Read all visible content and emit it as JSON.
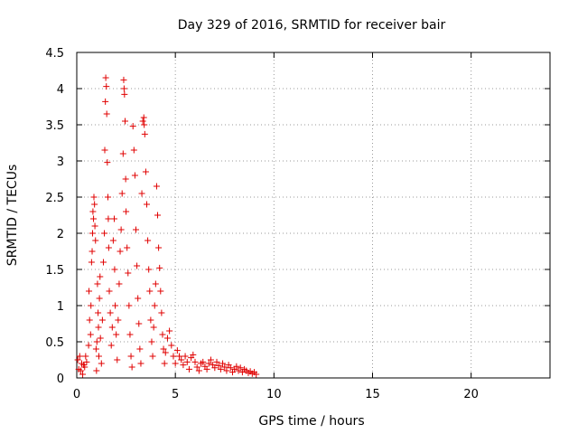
{
  "chart_data": {
    "type": "scatter",
    "title": "Day 329 of 2016, SRMTID for receiver bair",
    "xlabel": "GPS time / hours",
    "ylabel": "SRMTID / TECUs",
    "xlim": [
      0,
      24
    ],
    "ylim": [
      0,
      4.5
    ],
    "x_ticks": [
      0,
      5,
      10,
      15,
      20
    ],
    "y_ticks": [
      0,
      0.5,
      1,
      1.5,
      2,
      2.5,
      3,
      3.5,
      4,
      4.5
    ],
    "x_tick_labels": [
      "0",
      "5",
      "10",
      "15",
      "20"
    ],
    "y_tick_labels": [
      "0",
      "0.5",
      "1",
      "1.5",
      "2",
      "2.5",
      "3",
      "3.5",
      "4",
      "4.5"
    ],
    "grid": true,
    "marker": "+",
    "marker_color": "#e00000",
    "series": [
      {
        "name": "SRMTID",
        "points": [
          [
            0.05,
            0.25
          ],
          [
            0.1,
            0.12
          ],
          [
            0.15,
            0.3
          ],
          [
            0.2,
            0.1
          ],
          [
            0.25,
            0.2
          ],
          [
            0.3,
            0.05
          ],
          [
            0.35,
            0.18
          ],
          [
            0.4,
            0.15
          ],
          [
            0.45,
            0.3
          ],
          [
            0.5,
            0.22
          ],
          [
            0.6,
            0.45
          ],
          [
            0.62,
            1.2
          ],
          [
            0.65,
            0.8
          ],
          [
            0.7,
            0.6
          ],
          [
            0.72,
            1.0
          ],
          [
            0.75,
            1.6
          ],
          [
            0.78,
            1.75
          ],
          [
            0.8,
            2.0
          ],
          [
            0.82,
            2.3
          ],
          [
            0.85,
            2.2
          ],
          [
            0.87,
            2.5
          ],
          [
            0.9,
            2.4
          ],
          [
            0.92,
            2.1
          ],
          [
            0.95,
            1.9
          ],
          [
            0.98,
            0.4
          ],
          [
            1.0,
            0.1
          ],
          [
            1.02,
            0.5
          ],
          [
            1.05,
            1.3
          ],
          [
            1.08,
            0.9
          ],
          [
            1.1,
            0.7
          ],
          [
            1.12,
            0.3
          ],
          [
            1.15,
            1.1
          ],
          [
            1.18,
            1.4
          ],
          [
            1.2,
            0.55
          ],
          [
            1.25,
            0.2
          ],
          [
            1.3,
            0.8
          ],
          [
            1.35,
            1.6
          ],
          [
            1.4,
            2.0
          ],
          [
            1.42,
            3.15
          ],
          [
            1.45,
            3.82
          ],
          [
            1.47,
            4.15
          ],
          [
            1.5,
            4.03
          ],
          [
            1.52,
            3.65
          ],
          [
            1.55,
            2.98
          ],
          [
            1.58,
            2.5
          ],
          [
            1.6,
            2.2
          ],
          [
            1.62,
            1.8
          ],
          [
            1.65,
            1.2
          ],
          [
            1.7,
            0.9
          ],
          [
            1.75,
            0.45
          ],
          [
            1.8,
            0.7
          ],
          [
            1.85,
            1.9
          ],
          [
            1.9,
            2.2
          ],
          [
            1.92,
            1.5
          ],
          [
            1.95,
            1.0
          ],
          [
            2.0,
            0.6
          ],
          [
            2.05,
            0.25
          ],
          [
            2.1,
            0.8
          ],
          [
            2.15,
            1.3
          ],
          [
            2.2,
            1.75
          ],
          [
            2.25,
            2.05
          ],
          [
            2.3,
            2.55
          ],
          [
            2.35,
            3.1
          ],
          [
            2.38,
            4.12
          ],
          [
            2.4,
            4.0
          ],
          [
            2.42,
            3.92
          ],
          [
            2.45,
            3.55
          ],
          [
            2.48,
            2.75
          ],
          [
            2.5,
            2.3
          ],
          [
            2.55,
            1.8
          ],
          [
            2.6,
            1.45
          ],
          [
            2.65,
            1.0
          ],
          [
            2.7,
            0.6
          ],
          [
            2.75,
            0.3
          ],
          [
            2.8,
            0.15
          ],
          [
            2.85,
            3.48
          ],
          [
            2.9,
            3.15
          ],
          [
            2.95,
            2.8
          ],
          [
            3.0,
            2.05
          ],
          [
            3.05,
            1.55
          ],
          [
            3.1,
            1.1
          ],
          [
            3.15,
            0.75
          ],
          [
            3.2,
            0.4
          ],
          [
            3.25,
            0.2
          ],
          [
            3.3,
            2.55
          ],
          [
            3.35,
            3.55
          ],
          [
            3.4,
            3.6
          ],
          [
            3.42,
            3.5
          ],
          [
            3.45,
            3.37
          ],
          [
            3.5,
            2.85
          ],
          [
            3.55,
            2.4
          ],
          [
            3.6,
            1.9
          ],
          [
            3.65,
            1.5
          ],
          [
            3.7,
            1.2
          ],
          [
            3.75,
            0.8
          ],
          [
            3.8,
            0.5
          ],
          [
            3.85,
            0.3
          ],
          [
            3.9,
            0.7
          ],
          [
            3.95,
            1.0
          ],
          [
            4.0,
            1.3
          ],
          [
            4.05,
            2.65
          ],
          [
            4.1,
            2.25
          ],
          [
            4.15,
            1.8
          ],
          [
            4.2,
            1.52
          ],
          [
            4.25,
            1.2
          ],
          [
            4.3,
            0.9
          ],
          [
            4.35,
            0.6
          ],
          [
            4.4,
            0.4
          ],
          [
            4.45,
            0.2
          ],
          [
            4.5,
            0.35
          ],
          [
            4.6,
            0.55
          ],
          [
            4.7,
            0.65
          ],
          [
            4.8,
            0.45
          ],
          [
            4.9,
            0.3
          ],
          [
            5.0,
            0.2
          ],
          [
            5.1,
            0.38
          ],
          [
            5.2,
            0.3
          ],
          [
            5.3,
            0.25
          ],
          [
            5.4,
            0.18
          ],
          [
            5.5,
            0.3
          ],
          [
            5.6,
            0.22
          ],
          [
            5.7,
            0.12
          ],
          [
            5.8,
            0.28
          ],
          [
            5.9,
            0.32
          ],
          [
            6.0,
            0.22
          ],
          [
            6.1,
            0.15
          ],
          [
            6.2,
            0.1
          ],
          [
            6.3,
            0.2
          ],
          [
            6.4,
            0.22
          ],
          [
            6.5,
            0.16
          ],
          [
            6.6,
            0.12
          ],
          [
            6.7,
            0.2
          ],
          [
            6.8,
            0.25
          ],
          [
            6.9,
            0.18
          ],
          [
            7.0,
            0.14
          ],
          [
            7.1,
            0.22
          ],
          [
            7.2,
            0.17
          ],
          [
            7.3,
            0.12
          ],
          [
            7.4,
            0.2
          ],
          [
            7.5,
            0.15
          ],
          [
            7.6,
            0.1
          ],
          [
            7.7,
            0.18
          ],
          [
            7.8,
            0.14
          ],
          [
            7.9,
            0.08
          ],
          [
            8.0,
            0.12
          ],
          [
            8.1,
            0.16
          ],
          [
            8.2,
            0.1
          ],
          [
            8.3,
            0.14
          ],
          [
            8.4,
            0.08
          ],
          [
            8.5,
            0.12
          ],
          [
            8.6,
            0.1
          ],
          [
            8.7,
            0.07
          ],
          [
            8.8,
            0.09
          ],
          [
            8.9,
            0.06
          ],
          [
            9.0,
            0.08
          ],
          [
            9.1,
            0.05
          ]
        ]
      }
    ]
  }
}
